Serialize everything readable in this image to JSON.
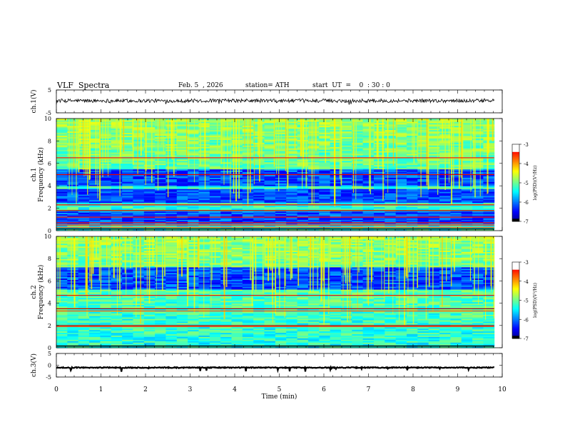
{
  "header": {
    "title": "VLF  Spectra",
    "date": "Feb. 5  , 2026",
    "station": "station= ATH",
    "start_ut": "start  UT  =    0  : 30 : 0"
  },
  "chart_data": [
    {
      "type": "line",
      "name": "ch1-waveform",
      "ylabel": "ch.1(V)",
      "ylim": [
        -5,
        5
      ],
      "yticks": [
        "5",
        "-5"
      ],
      "xlim": [
        0,
        10
      ],
      "baseline_v": 0.3,
      "noise_amp_v": 0.8,
      "data_end_min": 9.82
    },
    {
      "type": "heatmap",
      "name": "ch1-spectrogram",
      "ylabel": "Frequency (kHz)",
      "channel_label": "ch.1",
      "ylim": [
        0,
        10
      ],
      "yticks": [
        "0",
        "2",
        "4",
        "6",
        "8",
        "10"
      ],
      "xlim": [
        0,
        10
      ],
      "data_end_min": 9.82,
      "quiet_bands_khz": [
        [
          4.0,
          5.5
        ],
        [
          2.5,
          3.7
        ],
        [
          0.6,
          1.8
        ]
      ],
      "strong_lines_khz": [
        0.3,
        0.5,
        0.7,
        1.2,
        1.8,
        2.3,
        5.0,
        6.5
      ],
      "colorbar": {
        "label": "log(PSD)(V²/Hz)",
        "ticks": [
          "-3",
          "-4",
          "-5",
          "-6",
          "-7"
        ],
        "range": [
          -7,
          -3
        ]
      }
    },
    {
      "type": "heatmap",
      "name": "ch2-spectrogram",
      "ylabel": "Frequency (kHz)",
      "channel_label": "ch.2",
      "ylim": [
        0,
        10
      ],
      "yticks": [
        "0",
        "2",
        "4",
        "6",
        "8",
        "10"
      ],
      "xlim": [
        0,
        10
      ],
      "data_end_min": 9.82,
      "quiet_bands_khz": [
        [
          5.3,
          7.2
        ]
      ],
      "strong_lines_khz": [
        1.9,
        2.0,
        3.3,
        3.5,
        4.7
      ],
      "colorbar": {
        "label": "log(PSD)(V²/Hz)",
        "ticks": [
          "-3",
          "-4",
          "-5",
          "-6",
          "-7"
        ],
        "range": [
          -7,
          -3
        ]
      }
    },
    {
      "type": "line",
      "name": "ch3-waveform",
      "ylabel": "ch.3(V)",
      "ylim": [
        -5,
        5
      ],
      "yticks": [
        "5",
        "0",
        "-5"
      ],
      "xlim": [
        0,
        10
      ],
      "baseline_v": -1.0,
      "noise_amp_v": 0.2,
      "data_end_min": 9.82
    }
  ],
  "xaxis": {
    "label": "Time  (min)",
    "ticks": [
      "0",
      "1",
      "2",
      "3",
      "4",
      "5",
      "6",
      "7",
      "8",
      "9",
      "10"
    ],
    "range": [
      0,
      10
    ]
  }
}
